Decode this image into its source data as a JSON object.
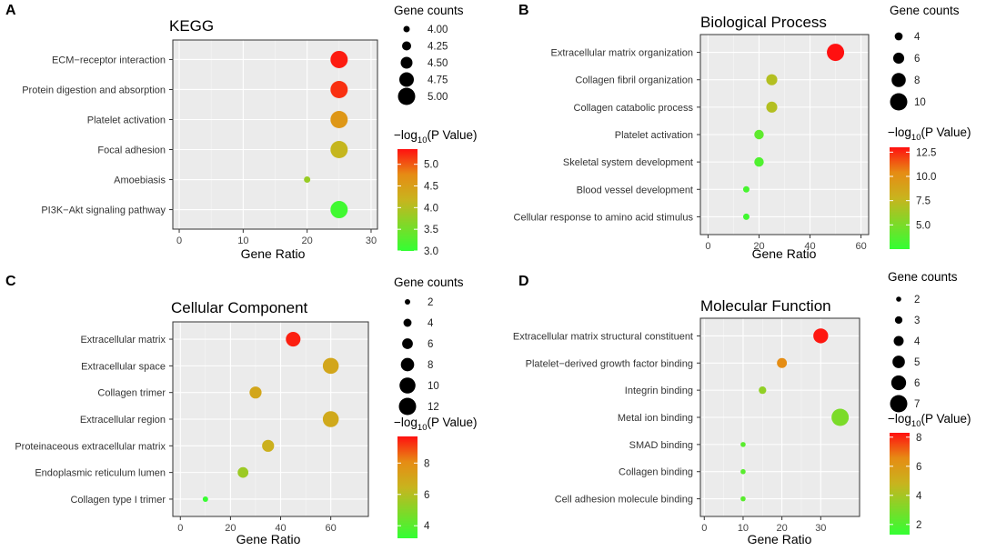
{
  "legend_labels": {
    "size_title": "Gene counts",
    "color_title_prefix": "−log",
    "color_title_sub": "10",
    "color_title_suffix": "(P Value)"
  },
  "chart_data": [
    {
      "type": "scatter",
      "panel_letter": "A",
      "title": "KEGG",
      "xlabel": "Gene Ratio",
      "ylabel": "",
      "xlim": [
        -1,
        31
      ],
      "xticks": [
        0,
        10,
        20,
        30
      ],
      "categories": [
        "ECM−receptor interaction",
        "Protein digestion and absorption",
        "Platelet activation",
        "Focal adhesion",
        "Amoebiasis",
        "PI3K−Akt signaling pathway"
      ],
      "x": [
        25,
        25,
        25,
        25,
        20,
        25
      ],
      "gene_counts": [
        5,
        5,
        5,
        5,
        4,
        5
      ],
      "neg_log10_p": [
        5.3,
        5.2,
        4.6,
        4.15,
        3.8,
        3.1
      ],
      "size_legend": [
        4.0,
        4.25,
        4.5,
        4.75,
        5.0
      ],
      "size_legend_labels": [
        "4.00",
        "4.25",
        "4.50",
        "4.75",
        "5.00"
      ],
      "color_range": [
        3.0,
        5.35
      ],
      "color_ticks": [
        3.0,
        3.5,
        4.0,
        4.5,
        5.0
      ],
      "color_tick_labels": [
        "3.0",
        "3.5",
        "4.0",
        "4.5",
        "5.0"
      ]
    },
    {
      "type": "scatter",
      "panel_letter": "B",
      "title": "Biological Process",
      "xlabel": "Gene Ratio",
      "ylabel": "",
      "xlim": [
        -3,
        63
      ],
      "xticks": [
        0,
        20,
        40,
        60
      ],
      "categories": [
        "Extracellular matrix organization",
        "Collagen fibril organization",
        "Collagen catabolic process",
        "Platelet activation",
        "Skeletal system development",
        "Blood vessel development",
        "Cellular response to amino acid stimulus"
      ],
      "x": [
        50,
        25,
        25,
        20,
        20,
        15,
        15
      ],
      "gene_counts": [
        10,
        6,
        6,
        5,
        5,
        3,
        3
      ],
      "neg_log10_p": [
        13.0,
        7.0,
        7.0,
        4.0,
        3.5,
        3.2,
        3.0
      ],
      "size_legend": [
        4,
        6,
        8,
        10
      ],
      "size_legend_labels": [
        "4",
        "6",
        "8",
        "10"
      ],
      "color_range": [
        2.5,
        13.0
      ],
      "color_ticks": [
        5.0,
        7.5,
        10.0,
        12.5
      ],
      "color_tick_labels": [
        "5.0",
        "7.5",
        "10.0",
        "12.5"
      ]
    },
    {
      "type": "scatter",
      "panel_letter": "C",
      "title": "Cellular Component",
      "xlabel": "Gene Ratio",
      "ylabel": "",
      "xlim": [
        -3,
        75
      ],
      "xticks": [
        0,
        20,
        40,
        60
      ],
      "categories": [
        "Extracellular matrix",
        "Extracellular space",
        "Collagen trimer",
        "Extracellular region",
        "Proteinaceous extracellular matrix",
        "Endoplasmic reticulum lumen",
        "Collagen type I trimer"
      ],
      "x": [
        45,
        60,
        30,
        60,
        35,
        25,
        10
      ],
      "gene_counts": [
        9,
        10,
        7,
        10,
        7,
        6,
        2
      ],
      "neg_log10_p": [
        9.5,
        7.0,
        7.0,
        6.9,
        6.6,
        5.5,
        3.3
      ],
      "size_legend": [
        2,
        4,
        6,
        8,
        10,
        12
      ],
      "size_legend_labels": [
        "2",
        "4",
        "6",
        "8",
        "10",
        "12"
      ],
      "color_range": [
        3.2,
        9.7
      ],
      "color_ticks": [
        4,
        6,
        8
      ],
      "color_tick_labels": [
        "4",
        "6",
        "8"
      ]
    },
    {
      "type": "scatter",
      "panel_letter": "D",
      "title": "Molecular Function",
      "xlabel": "Gene Ratio",
      "ylabel": "",
      "xlim": [
        -1,
        40
      ],
      "xticks": [
        0,
        10,
        20,
        30
      ],
      "categories": [
        "Extracellular matrix structural constituent",
        "Platelet−derived growth factor binding",
        "Integrin binding",
        "Metal ion binding",
        "SMAD binding",
        "Collagen binding",
        "Cell adhesion molecule binding"
      ],
      "x": [
        30,
        20,
        15,
        35,
        10,
        10,
        10
      ],
      "gene_counts": [
        6,
        4,
        3,
        7,
        2,
        2,
        2
      ],
      "neg_log10_p": [
        8.2,
        6.5,
        3.5,
        3.0,
        2.2,
        2.2,
        2.2
      ],
      "size_legend": [
        2,
        3,
        4,
        5,
        6,
        7
      ],
      "size_legend_labels": [
        "2",
        "3",
        "4",
        "5",
        "6",
        "7"
      ],
      "color_range": [
        1.3,
        8.3
      ],
      "color_ticks": [
        2,
        4,
        6,
        8
      ],
      "color_tick_labels": [
        "2",
        "4",
        "6",
        "8"
      ]
    }
  ]
}
